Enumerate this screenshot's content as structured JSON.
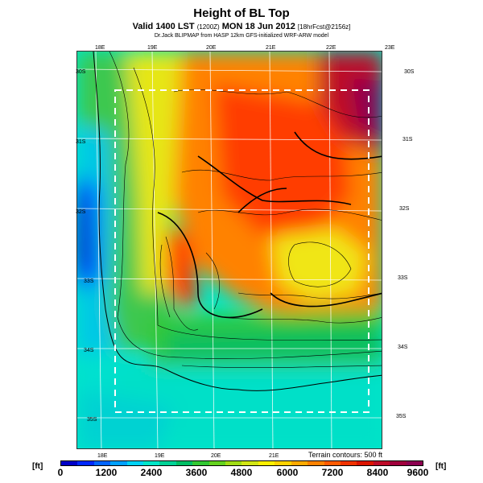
{
  "header": {
    "title": "Height of BL Top",
    "subtitle_main": "Valid 1400 LST",
    "subtitle_small1": "(1200Z)",
    "subtitle_main2": "MON 18 Jun 2012",
    "subtitle_small2": "[18hrFcst@2156z]",
    "credit": "Dr.Jack BLIPMAP from HASP 12km GFS-initialized WRF-ARW model"
  },
  "map": {
    "lon_top": [
      "18E",
      "19E",
      "20E",
      "21E",
      "22E",
      "23E"
    ],
    "lon_bottom": [
      "18E",
      "19E",
      "20E",
      "21E"
    ],
    "lat_right": [
      "30S",
      "31S",
      "32S",
      "33S",
      "34S",
      "35S"
    ],
    "lat_left": [
      "30S",
      "31S",
      "32S",
      "33S",
      "34S",
      "35S"
    ],
    "terrain_note": "Terrain contours: 500 ft"
  },
  "colorbar": {
    "unit_left": "[ft]",
    "unit_right": "[ft]",
    "ticks": [
      "0",
      "1200",
      "2400",
      "3600",
      "4800",
      "6000",
      "7200",
      "8400",
      "9600"
    ],
    "colors": [
      "#0000c8",
      "#0028ff",
      "#0064ff",
      "#00a0ff",
      "#00d2f5",
      "#00e6c8",
      "#00d296",
      "#00be64",
      "#32c832",
      "#64d21e",
      "#a0dc14",
      "#d2e614",
      "#fff000",
      "#ffd200",
      "#ffaa00",
      "#ff8200",
      "#ff5a00",
      "#f03200",
      "#dc1400",
      "#be0a28",
      "#a0003c",
      "#8c0050"
    ]
  }
}
